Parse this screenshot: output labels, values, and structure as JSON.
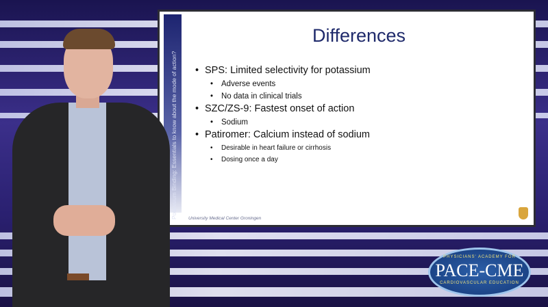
{
  "slide": {
    "side_title": "Potassium Binding: Essentials to know about the mode of action?",
    "title": "Differences",
    "bullets": [
      {
        "text": "SPS: Limited selectivity for potassium",
        "sub": [
          "Adverse events",
          "No data in clinical trials"
        ]
      },
      {
        "text": "SZC/ZS-9: Fastest onset of action",
        "sub": [
          "Sodium"
        ]
      },
      {
        "text": "Patiromer: Calcium instead of sodium",
        "sub": [
          "Desirable in heart failure or cirrhosis",
          "Dosing once a day"
        ]
      }
    ],
    "footer": "University Medical Center Groningen"
  },
  "logo": {
    "top": "PHYSICIANS' ACADEMY FOR",
    "name": "PACE-CME",
    "bottom": "CARDIOVASCULAR EDUCATION"
  },
  "colors": {
    "title": "#1f2a6b",
    "logo_blue": "#1e4c92"
  }
}
